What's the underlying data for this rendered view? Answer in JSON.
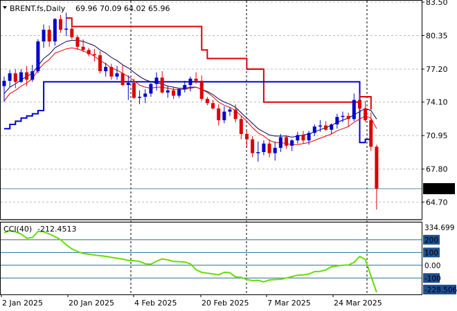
{
  "header": {
    "symbol": "BRENT.fs,Daily",
    "ohlc": "69.96 70.09 64.02 65.96"
  },
  "price_axis": {
    "ticks": [
      "83.50",
      "80.35",
      "77.20",
      "74.10",
      "70.95",
      "67.80",
      "64.70"
    ],
    "current_price": "65.96"
  },
  "indicator": {
    "label": "CCI(40)",
    "value": "-212.4513",
    "top_label": "334.699",
    "bottom_label": "-228.506",
    "levels": [
      "200",
      "100",
      "0.00",
      "-100"
    ]
  },
  "x_axis": {
    "labels": [
      "2 Jan 2025",
      "20 Jan 2025",
      "4 Feb 2025",
      "20 Feb 2025",
      "7 Mar 2025",
      "24 Mar 2025"
    ]
  },
  "colors": {
    "bull": "#0000cc",
    "bear": "#dd0000",
    "ema_fast": "#dd0000",
    "ema_slow": "#000055",
    "stop_upper": "#dd0000",
    "stop_lower": "#0000cc",
    "cci": "#66dd00",
    "level_badge": "#1f4f8f",
    "current_price_bg": "#000000"
  },
  "chart_data": [
    {
      "type": "candlestick",
      "ylim": [
        63.1,
        83.5
      ],
      "x": [
        "2 Jan 2025",
        "3 Jan",
        "6 Jan",
        "7 Jan",
        "8 Jan",
        "9 Jan",
        "10 Jan",
        "13 Jan",
        "14 Jan",
        "15 Jan",
        "16 Jan",
        "17 Jan",
        "20 Jan 2025",
        "21 Jan",
        "22 Jan",
        "23 Jan",
        "24 Jan",
        "27 Jan",
        "28 Jan",
        "29 Jan",
        "30 Jan",
        "31 Jan",
        "3 Feb",
        "4 Feb 2025",
        "5 Feb",
        "6 Feb",
        "7 Feb",
        "10 Feb",
        "11 Feb",
        "12 Feb",
        "13 Feb",
        "14 Feb",
        "17 Feb",
        "18 Feb",
        "19 Feb",
        "20 Feb 2025",
        "21 Feb",
        "24 Feb",
        "25 Feb",
        "26 Feb",
        "27 Feb",
        "28 Feb",
        "3 Mar",
        "4 Mar",
        "5 Mar",
        "6 Mar",
        "7 Mar 2025",
        "10 Mar",
        "11 Mar",
        "12 Mar",
        "13 Mar",
        "14 Mar",
        "17 Mar",
        "18 Mar",
        "19 Mar",
        "20 Mar",
        "21 Mar",
        "24 Mar 2025",
        "25 Mar",
        "26 Mar",
        "27 Mar",
        "28 Mar",
        "31 Mar",
        "1 Apr",
        "2 Apr",
        "3 Apr",
        "4 Apr"
      ],
      "ohlc": [
        [
          75.6,
          76.5,
          74.1,
          76.1
        ],
        [
          76.1,
          77.1,
          75.5,
          76.8
        ],
        [
          76.8,
          77.2,
          75.4,
          76.0
        ],
        [
          76.0,
          77.2,
          75.9,
          76.9
        ],
        [
          76.9,
          77.5,
          75.6,
          76.2
        ],
        [
          76.2,
          77.6,
          76.0,
          77.0
        ],
        [
          77.0,
          80.0,
          76.8,
          79.8
        ],
        [
          79.8,
          81.4,
          79.2,
          80.9
        ],
        [
          80.9,
          81.3,
          79.3,
          79.8
        ],
        [
          79.8,
          82.0,
          79.4,
          81.9
        ],
        [
          81.9,
          82.3,
          80.6,
          80.9
        ],
        [
          80.9,
          82.5,
          80.3,
          81.0
        ],
        [
          81.0,
          81.2,
          80.0,
          80.2
        ],
        [
          80.2,
          80.4,
          79.0,
          79.3
        ],
        [
          79.3,
          80.0,
          78.8,
          79.0
        ],
        [
          79.0,
          79.2,
          78.4,
          78.6
        ],
        [
          78.6,
          79.1,
          77.9,
          78.5
        ],
        [
          78.5,
          78.9,
          76.8,
          77.0
        ],
        [
          77.0,
          77.8,
          76.5,
          77.4
        ],
        [
          77.4,
          77.7,
          76.2,
          76.5
        ],
        [
          76.5,
          77.5,
          76.2,
          76.8
        ],
        [
          76.8,
          77.6,
          75.6,
          75.7
        ],
        [
          75.7,
          76.6,
          74.3,
          75.9
        ],
        [
          75.9,
          76.3,
          74.4,
          74.5
        ],
        [
          74.5,
          75.2,
          73.9,
          74.6
        ],
        [
          74.6,
          75.3,
          74.0,
          74.9
        ],
        [
          74.9,
          75.9,
          74.6,
          75.8
        ],
        [
          75.8,
          76.9,
          75.2,
          76.4
        ],
        [
          76.4,
          77.0,
          74.9,
          75.0
        ],
        [
          75.0,
          75.6,
          74.5,
          75.2
        ],
        [
          75.2,
          75.5,
          74.4,
          74.7
        ],
        [
          74.7,
          75.4,
          74.5,
          75.3
        ],
        [
          75.3,
          76.1,
          75.0,
          75.7
        ],
        [
          75.7,
          76.5,
          75.1,
          76.3
        ],
        [
          76.3,
          76.9,
          75.8,
          76.1
        ],
        [
          76.1,
          76.6,
          74.2,
          74.4
        ],
        [
          74.4,
          74.6,
          73.8,
          74.0
        ],
        [
          74.0,
          74.3,
          73.4,
          73.5
        ],
        [
          73.5,
          73.9,
          71.9,
          72.4
        ],
        [
          72.4,
          73.7,
          72.1,
          73.2
        ],
        [
          73.2,
          73.6,
          72.8,
          73.4
        ],
        [
          73.4,
          73.9,
          72.2,
          72.5
        ],
        [
          72.5,
          72.8,
          70.6,
          71.1
        ],
        [
          71.1,
          71.4,
          69.8,
          70.6
        ],
        [
          70.6,
          70.9,
          68.9,
          69.3
        ],
        [
          69.3,
          70.4,
          68.5,
          69.4
        ],
        [
          69.4,
          70.5,
          69.1,
          70.2
        ],
        [
          70.2,
          70.6,
          68.9,
          69.3
        ],
        [
          69.3,
          70.4,
          68.6,
          69.8
        ],
        [
          69.8,
          71.1,
          69.4,
          70.8
        ],
        [
          70.8,
          71.0,
          69.7,
          70.0
        ],
        [
          70.0,
          70.6,
          69.5,
          70.5
        ],
        [
          70.5,
          71.3,
          70.2,
          71.0
        ],
        [
          71.0,
          71.4,
          70.2,
          70.5
        ],
        [
          70.5,
          71.4,
          70.1,
          71.2
        ],
        [
          71.2,
          72.0,
          70.9,
          71.8
        ],
        [
          71.8,
          72.4,
          71.3,
          71.9
        ],
        [
          71.9,
          72.3,
          71.4,
          71.5
        ],
        [
          71.5,
          72.1,
          71.1,
          72.0
        ],
        [
          72.0,
          73.0,
          71.6,
          72.7
        ],
        [
          72.7,
          73.2,
          72.2,
          72.8
        ],
        [
          72.8,
          73.1,
          71.8,
          72.5
        ],
        [
          72.5,
          74.9,
          72.3,
          74.3
        ],
        [
          74.3,
          74.9,
          73.2,
          73.5
        ],
        [
          73.5,
          74.2,
          72.2,
          72.4
        ],
        [
          72.4,
          73.1,
          69.5,
          69.9
        ],
        [
          69.9,
          70.1,
          64.0,
          65.96
        ]
      ],
      "ema_fast": [
        74.2,
        74.9,
        75.2,
        75.6,
        75.9,
        76.3,
        77.1,
        77.7,
        78.1,
        78.7,
        78.9,
        79.1,
        79.2,
        79.1,
        78.9,
        78.7,
        78.4,
        78.0,
        77.7,
        77.3,
        77.1,
        76.8,
        76.5,
        76.1,
        75.7,
        75.5,
        75.4,
        75.5,
        75.5,
        75.4,
        75.3,
        75.3,
        75.3,
        75.4,
        75.5,
        75.3,
        75.0,
        74.6,
        74.1,
        73.8,
        73.6,
        73.3,
        72.8,
        72.3,
        71.7,
        71.2,
        70.9,
        70.5,
        70.3,
        70.3,
        70.2,
        70.1,
        70.1,
        70.2,
        70.3,
        70.5,
        70.7,
        70.9,
        71.1,
        71.4,
        71.6,
        71.8,
        72.2,
        72.5,
        72.8,
        72.6,
        71.6
      ],
      "ema_slow": [
        74.9,
        75.5,
        75.8,
        76.2,
        76.5,
        76.8,
        77.5,
        78.2,
        78.6,
        79.2,
        79.5,
        79.8,
        79.9,
        79.9,
        79.8,
        79.6,
        79.4,
        79.0,
        78.7,
        78.3,
        78.0,
        77.6,
        77.3,
        76.9,
        76.5,
        76.2,
        76.0,
        75.9,
        75.8,
        75.6,
        75.5,
        75.4,
        75.4,
        75.5,
        75.5,
        75.3,
        75.1,
        74.8,
        74.4,
        74.1,
        73.9,
        73.6,
        73.1,
        72.6,
        72.1,
        71.6,
        71.3,
        71.0,
        70.9,
        70.9,
        70.9,
        70.8,
        70.9,
        71.0,
        71.1,
        71.3,
        71.5,
        71.7,
        71.9,
        72.2,
        72.4,
        72.6,
        72.9,
        73.2,
        73.5,
        73.3,
        72.5
      ],
      "stop_upper": [
        null,
        null,
        null,
        null,
        null,
        null,
        null,
        null,
        null,
        null,
        null,
        null,
        null,
        null,
        null,
        null,
        null,
        null,
        null,
        null,
        null,
        null,
        null,
        null,
        null,
        null,
        null,
        null,
        null,
        null,
        null,
        null,
        null,
        null,
        null,
        null,
        null,
        null,
        null,
        null,
        null,
        null,
        null,
        null,
        null,
        null,
        null,
        null,
        null,
        null,
        null,
        null,
        null,
        null,
        null,
        null,
        null,
        null,
        null,
        null,
        null,
        null,
        null,
        74.6,
        74.6,
        73.4,
        null
      ],
      "stop_lower": [
        71.6,
        72.0,
        72.3,
        72.6,
        72.8,
        73.0,
        73.3,
        76.0,
        76.0,
        76.0,
        76.0,
        76.0,
        76.0,
        76.0,
        76.0,
        76.0,
        76.0,
        76.0,
        76.0,
        76.0,
        76.0,
        76.0,
        76.0,
        76.0,
        76.0,
        76.0,
        76.0,
        76.0,
        76.0,
        76.0,
        76.0,
        76.0,
        76.0,
        76.0,
        76.0,
        76.0,
        76.0,
        76.0,
        76.0,
        76.0,
        76.0,
        76.0,
        76.0,
        76.0,
        76.0,
        76.0,
        76.0,
        76.0,
        76.0,
        76.0,
        76.0,
        76.0,
        76.0,
        76.0,
        76.0,
        76.0,
        76.0,
        76.0,
        76.0,
        76.0,
        76.0,
        76.0,
        76.0,
        70.3,
        70.6,
        70.6,
        null
      ],
      "stop_upper_segment": [
        null,
        null,
        null,
        null,
        null,
        null,
        null,
        null,
        null,
        null,
        null,
        82.0,
        81.2,
        81.2,
        81.2,
        81.2,
        81.2,
        81.2,
        81.2,
        81.2,
        81.2,
        81.2,
        81.2,
        81.2,
        81.2,
        81.2,
        81.2,
        81.2,
        81.2,
        81.2,
        81.2,
        81.2,
        81.2,
        81.2,
        81.2,
        79.0,
        78.2,
        78.2,
        78.2,
        78.2,
        78.2,
        78.2,
        78.2,
        77.2,
        77.2,
        77.2,
        74.1,
        74.1,
        74.1,
        74.1,
        74.1,
        74.1,
        74.1,
        74.1,
        74.1,
        74.1,
        74.1,
        74.1,
        74.1,
        74.1,
        74.1,
        74.1,
        74.1,
        74.1,
        null,
        null,
        null
      ]
    },
    {
      "type": "line",
      "name": "CCI(40)",
      "ylim": [
        -228.506,
        334.699
      ],
      "x": [
        "2 Jan 2025",
        "3 Jan",
        "6 Jan",
        "7 Jan",
        "8 Jan",
        "9 Jan",
        "10 Jan",
        "13 Jan",
        "14 Jan",
        "15 Jan",
        "16 Jan",
        "17 Jan",
        "20 Jan 2025",
        "21 Jan",
        "22 Jan",
        "23 Jan",
        "24 Jan",
        "27 Jan",
        "28 Jan",
        "29 Jan",
        "30 Jan",
        "31 Jan",
        "3 Feb",
        "4 Feb 2025",
        "5 Feb",
        "6 Feb",
        "7 Feb",
        "10 Feb",
        "11 Feb",
        "12 Feb",
        "13 Feb",
        "14 Feb",
        "17 Feb",
        "18 Feb",
        "19 Feb",
        "20 Feb 2025",
        "21 Feb",
        "24 Feb",
        "25 Feb",
        "26 Feb",
        "27 Feb",
        "28 Feb",
        "3 Mar",
        "4 Mar",
        "5 Mar",
        "6 Mar",
        "7 Mar 2025",
        "10 Mar",
        "11 Mar",
        "12 Mar",
        "13 Mar",
        "14 Mar",
        "17 Mar",
        "18 Mar",
        "19 Mar",
        "20 Mar",
        "21 Mar",
        "24 Mar 2025",
        "25 Mar",
        "26 Mar",
        "27 Mar",
        "28 Mar",
        "31 Mar",
        "1 Apr",
        "2 Apr",
        "3 Apr",
        "4 Apr"
      ],
      "values": [
        255,
        270,
        262,
        245,
        212,
        218,
        265,
        262,
        245,
        225,
        200,
        160,
        128,
        108,
        92,
        86,
        80,
        75,
        70,
        62,
        55,
        48,
        38,
        36,
        30,
        12,
        8,
        32,
        50,
        42,
        30,
        28,
        25,
        12,
        -35,
        -55,
        -62,
        -68,
        -75,
        -55,
        -58,
        -92,
        -95,
        -112,
        -120,
        -118,
        -130,
        -115,
        -112,
        -110,
        -100,
        -88,
        -78,
        -76,
        -68,
        -50,
        -48,
        -36,
        -12,
        -5,
        0,
        2,
        22,
        70,
        45,
        -85,
        -212
      ]
    }
  ]
}
